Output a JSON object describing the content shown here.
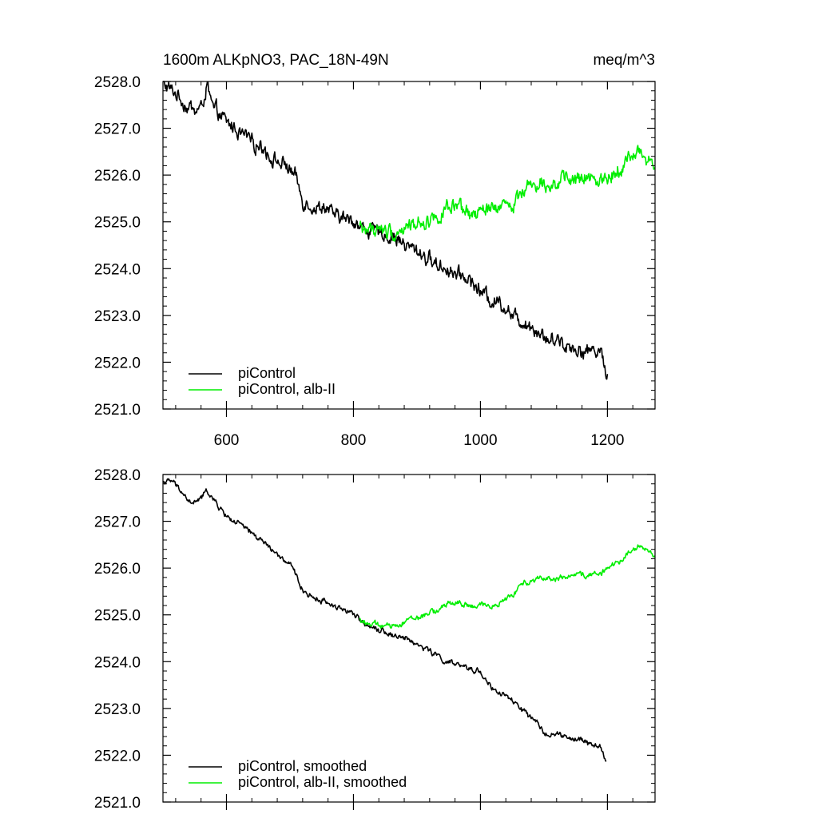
{
  "title_left": "1600m ALKpNO3, PAC_18N-49N",
  "title_right": "meq/m^3",
  "colors": {
    "control": "#000000",
    "experiment": "#00ee00",
    "axis": "#000000"
  },
  "chart_data": [
    {
      "type": "line",
      "name": "raw",
      "xlim": [
        500,
        1275
      ],
      "ylim": [
        2521.0,
        2528.0
      ],
      "xticks": [
        600,
        800,
        1000,
        1200
      ],
      "xtick_labels": [
        "600",
        "800",
        "1000",
        "1200"
      ],
      "yticks": [
        2521,
        2522,
        2523,
        2524,
        2525,
        2526,
        2527,
        2528
      ],
      "ytick_labels": [
        "2521.0",
        "2522.0",
        "2523.0",
        "2524.0",
        "2525.0",
        "2526.0",
        "2527.0",
        "2528.0"
      ],
      "legend_position": "bottom-left",
      "series": [
        {
          "name": "piControl",
          "color": "#000000",
          "x": [
            500,
            520,
            540,
            560,
            570,
            580,
            600,
            620,
            640,
            660,
            680,
            700,
            710,
            720,
            740,
            760,
            780,
            800,
            820,
            840,
            860,
            880,
            900,
            920,
            940,
            960,
            980,
            1000,
            1020,
            1040,
            1060,
            1080,
            1100,
            1120,
            1140,
            1160,
            1180,
            1190,
            1195,
            1200
          ],
          "y": [
            2528.0,
            2527.75,
            2527.4,
            2527.45,
            2527.85,
            2527.4,
            2527.1,
            2526.95,
            2526.8,
            2526.55,
            2526.3,
            2526.1,
            2525.85,
            2525.4,
            2525.3,
            2525.2,
            2525.1,
            2525.0,
            2524.85,
            2524.75,
            2524.65,
            2524.55,
            2524.4,
            2524.2,
            2524.0,
            2523.95,
            2523.85,
            2523.5,
            2523.35,
            2523.2,
            2522.95,
            2522.8,
            2522.55,
            2522.45,
            2522.35,
            2522.3,
            2522.25,
            2522.3,
            2521.85,
            2521.75
          ],
          "noise_amplitude": 0.12
        },
        {
          "name": "piControl, alb-II",
          "color": "#00ee00",
          "x": [
            810,
            830,
            850,
            870,
            890,
            910,
            930,
            950,
            970,
            990,
            1010,
            1030,
            1050,
            1070,
            1090,
            1110,
            1130,
            1150,
            1170,
            1190,
            1210,
            1230,
            1250,
            1260,
            1275
          ],
          "y": [
            2524.9,
            2524.85,
            2524.75,
            2524.85,
            2524.95,
            2525.0,
            2525.1,
            2525.25,
            2525.2,
            2525.15,
            2525.25,
            2525.3,
            2525.4,
            2525.75,
            2525.8,
            2525.8,
            2525.85,
            2525.9,
            2525.9,
            2525.95,
            2526.1,
            2526.3,
            2526.5,
            2526.4,
            2526.2
          ],
          "noise_amplitude": 0.12
        }
      ]
    },
    {
      "type": "line",
      "name": "smoothed",
      "xlim": [
        500,
        1275
      ],
      "ylim": [
        2521.0,
        2528.0
      ],
      "xticks": [
        600,
        800,
        1000,
        1200
      ],
      "xtick_labels": [],
      "yticks": [
        2521,
        2522,
        2523,
        2524,
        2525,
        2526,
        2527,
        2528
      ],
      "ytick_labels": [
        "2521.0",
        "2522.0",
        "2523.0",
        "2524.0",
        "2525.0",
        "2526.0",
        "2527.0",
        "2528.0"
      ],
      "legend_position": "bottom-left",
      "series": [
        {
          "name": "piControl, smoothed",
          "color": "#000000",
          "x": [
            500,
            515,
            530,
            545,
            560,
            570,
            585,
            600,
            620,
            640,
            660,
            680,
            700,
            710,
            720,
            740,
            760,
            780,
            800,
            820,
            840,
            860,
            880,
            900,
            920,
            940,
            960,
            980,
            1000,
            1020,
            1040,
            1060,
            1080,
            1100,
            1120,
            1140,
            1160,
            1180,
            1190,
            1198
          ],
          "y": [
            2527.85,
            2527.85,
            2527.6,
            2527.35,
            2527.5,
            2527.65,
            2527.35,
            2527.1,
            2526.95,
            2526.75,
            2526.55,
            2526.3,
            2526.05,
            2525.85,
            2525.5,
            2525.35,
            2525.25,
            2525.15,
            2525.0,
            2524.8,
            2524.7,
            2524.6,
            2524.5,
            2524.35,
            2524.25,
            2524.05,
            2523.95,
            2523.85,
            2523.8,
            2523.4,
            2523.25,
            2523.05,
            2522.8,
            2522.5,
            2522.45,
            2522.35,
            2522.3,
            2522.2,
            2522.2,
            2521.85
          ],
          "noise_amplitude": 0.045
        },
        {
          "name": "piControl, alb-II, smoothed",
          "color": "#00ee00",
          "x": [
            810,
            830,
            850,
            870,
            890,
            910,
            930,
            950,
            970,
            990,
            1010,
            1030,
            1050,
            1070,
            1090,
            1110,
            1130,
            1150,
            1170,
            1190,
            1210,
            1230,
            1250,
            1262,
            1275
          ],
          "y": [
            2524.9,
            2524.8,
            2524.75,
            2524.8,
            2524.95,
            2525.0,
            2525.1,
            2525.25,
            2525.25,
            2525.15,
            2525.2,
            2525.25,
            2525.4,
            2525.7,
            2525.8,
            2525.8,
            2525.8,
            2525.85,
            2525.85,
            2525.9,
            2526.05,
            2526.3,
            2526.45,
            2526.4,
            2526.25
          ],
          "noise_amplitude": 0.045
        }
      ]
    }
  ]
}
